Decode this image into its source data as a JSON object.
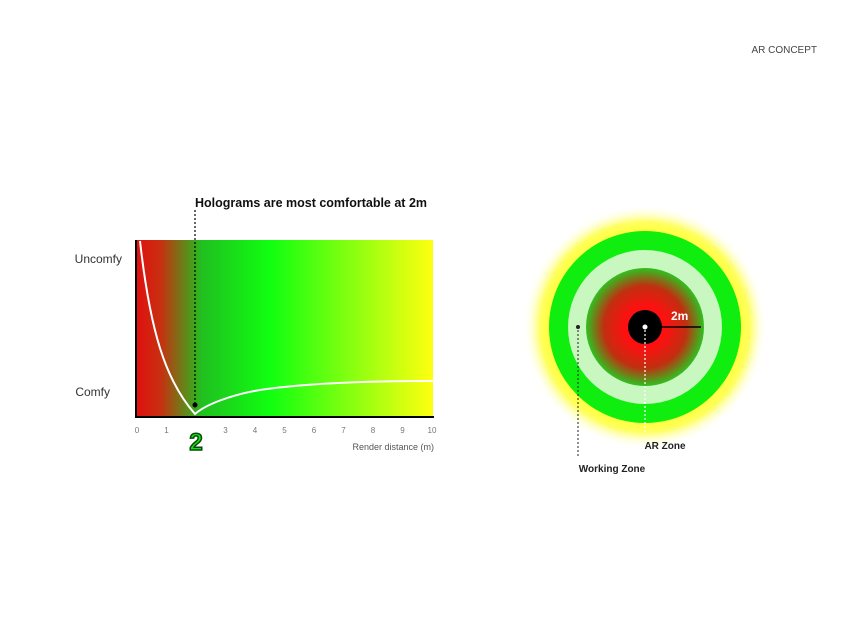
{
  "header": {
    "label": "AR CONCEPT"
  },
  "comfort_chart": {
    "annotation": "Holograms are most comfortable at 2m",
    "y_labels": [
      "Uncomfy",
      "Comfy"
    ],
    "x_ticks": [
      0,
      1,
      3,
      4,
      5,
      6,
      7,
      8,
      9,
      10
    ],
    "highlight_tick": 2,
    "x_axis_label": "Render distance (m)"
  },
  "zone_diagram": {
    "radius_label": "2m",
    "ar_zone_label": "AR Zone",
    "working_zone_label": "Working Zone"
  }
}
